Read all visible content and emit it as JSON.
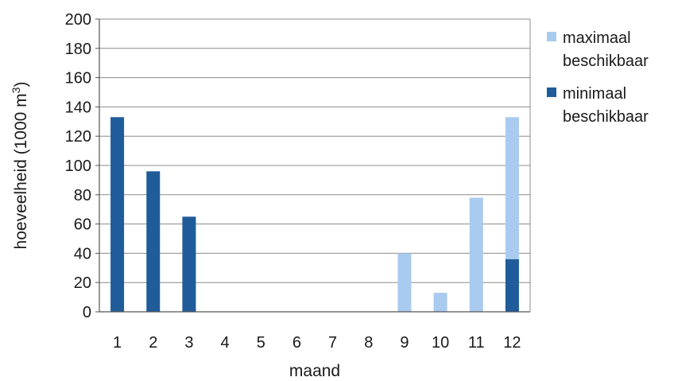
{
  "chart_data": {
    "type": "bar",
    "stacked": true,
    "categories": [
      "1",
      "2",
      "3",
      "4",
      "5",
      "6",
      "7",
      "8",
      "9",
      "10",
      "11",
      "12"
    ],
    "series": [
      {
        "name": "minimaal beschikbaar",
        "color": "#1f5c99",
        "values": [
          133,
          96,
          65,
          0,
          0,
          0,
          0,
          0,
          0,
          0,
          0,
          36
        ]
      },
      {
        "name": "maximaal beschikbaar",
        "color": "#a9cbef",
        "values": [
          0,
          0,
          0,
          0,
          0,
          0,
          0,
          0,
          40,
          13,
          78,
          97
        ]
      }
    ],
    "legend_order": [
      "maximaal beschikbaar",
      "minimaal beschikbaar"
    ],
    "legend_lines": {
      "maximaal beschikbaar": [
        "maximaal",
        "beschikbaar"
      ],
      "minimaal beschikbaar": [
        "minimaal",
        "beschikbaar"
      ]
    },
    "xlabel": "maand",
    "ylabel_main": "hoeveelheid (1000 m",
    "ylabel_sup": "3",
    "ylabel_close": ")",
    "ylim": [
      0,
      200
    ],
    "yticks": [
      0,
      20,
      40,
      60,
      80,
      100,
      120,
      140,
      160,
      180,
      200
    ],
    "grid": true,
    "legend_position": "right"
  }
}
